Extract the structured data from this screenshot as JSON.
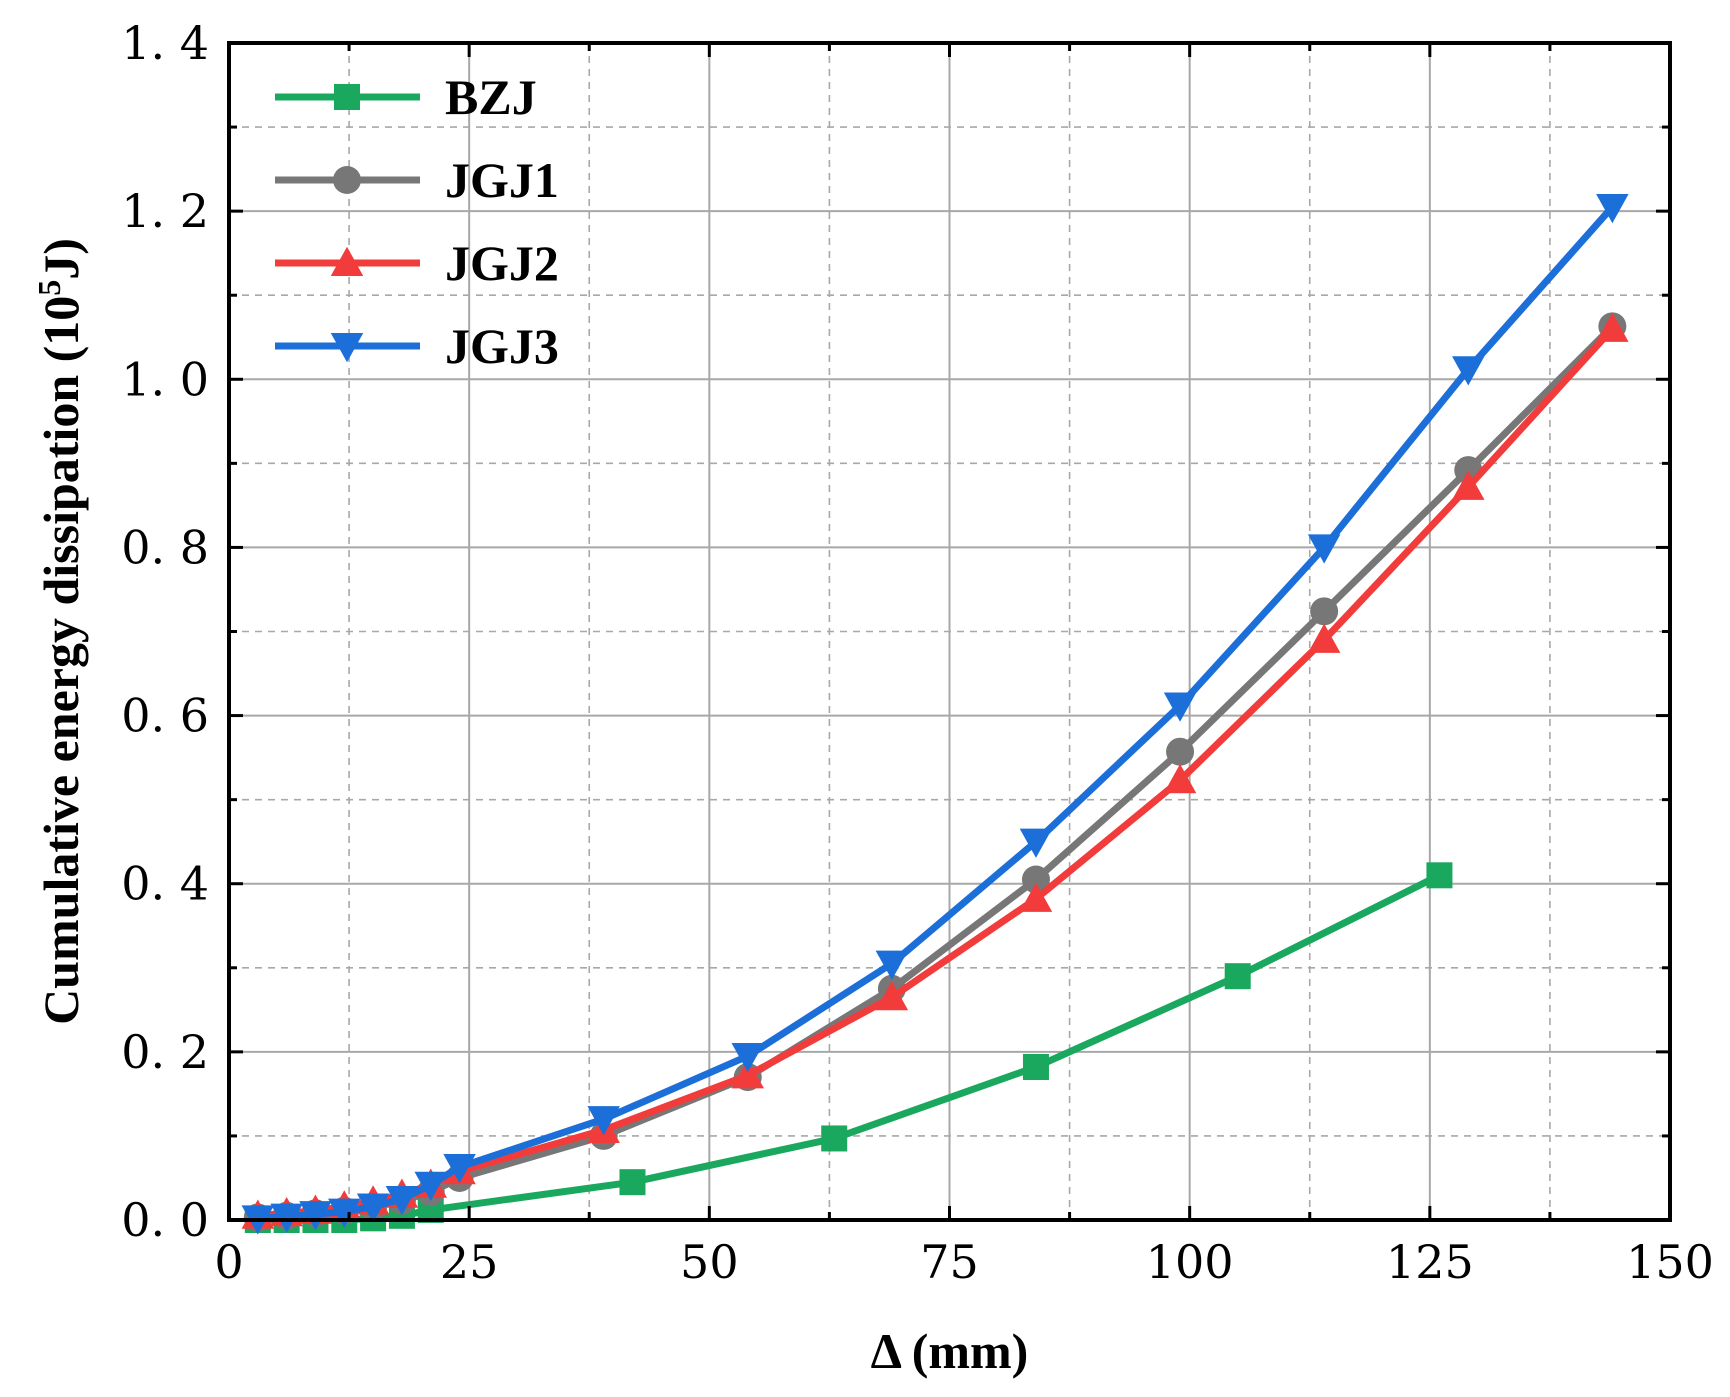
{
  "chart_data": {
    "type": "line",
    "xlabel": "Δ (mm)",
    "ylabel": "Cumulative energy dissipation (10⁵J)",
    "ylabel_main": "Cumulative energy dissipation (10",
    "ylabel_sup": "5",
    "ylabel_tail": "J)",
    "xlim": [
      0,
      150
    ],
    "ylim": [
      0,
      1.4
    ],
    "xticks": [
      0,
      25,
      50,
      75,
      100,
      125,
      150
    ],
    "yticks": [
      0.0,
      0.2,
      0.4,
      0.6,
      0.8,
      1.0,
      1.2,
      1.4
    ],
    "xtick_labels": [
      "0",
      "25",
      "50",
      "75",
      "100",
      "125",
      "150"
    ],
    "ytick_labels": [
      "0. 0",
      "0. 2",
      "0. 4",
      "0. 6",
      "0. 8",
      "1. 0",
      "1. 2",
      "1. 4"
    ],
    "grid": true,
    "legend_position": "top-left",
    "series": [
      {
        "name": "BZJ",
        "color": "#1aa85f",
        "marker": "square",
        "x": [
          3,
          6,
          9,
          12,
          15,
          18,
          21,
          42,
          63,
          84,
          105,
          126
        ],
        "y": [
          0.0,
          0.0,
          0.0,
          0.0,
          0.002,
          0.005,
          0.012,
          0.045,
          0.097,
          0.182,
          0.29,
          0.41
        ]
      },
      {
        "name": "JGJ1",
        "color": "#777777",
        "marker": "circle",
        "x": [
          3,
          6,
          9,
          12,
          15,
          18,
          21,
          24,
          39,
          54,
          69,
          84,
          99,
          114,
          129,
          144
        ],
        "y": [
          0.003,
          0.005,
          0.008,
          0.011,
          0.016,
          0.023,
          0.033,
          0.05,
          0.1,
          0.17,
          0.275,
          0.405,
          0.557,
          0.724,
          0.892,
          1.063
        ]
      },
      {
        "name": "JGJ2",
        "color": "#f23c3c",
        "marker": "triangle-up",
        "x": [
          3,
          6,
          9,
          12,
          15,
          18,
          21,
          24,
          39,
          54,
          69,
          84,
          99,
          114,
          129,
          144
        ],
        "y": [
          0.005,
          0.008,
          0.011,
          0.016,
          0.022,
          0.03,
          0.042,
          0.058,
          0.107,
          0.172,
          0.265,
          0.382,
          0.523,
          0.69,
          0.872,
          1.06
        ]
      },
      {
        "name": "JGJ3",
        "color": "#1c6fd9",
        "marker": "triangle-down",
        "x": [
          3,
          6,
          9,
          12,
          15,
          18,
          21,
          24,
          39,
          54,
          69,
          84,
          99,
          114,
          129,
          144
        ],
        "y": [
          0.002,
          0.004,
          0.007,
          0.01,
          0.016,
          0.025,
          0.042,
          0.063,
          0.12,
          0.195,
          0.305,
          0.45,
          0.612,
          0.8,
          1.012,
          1.205
        ]
      }
    ]
  }
}
